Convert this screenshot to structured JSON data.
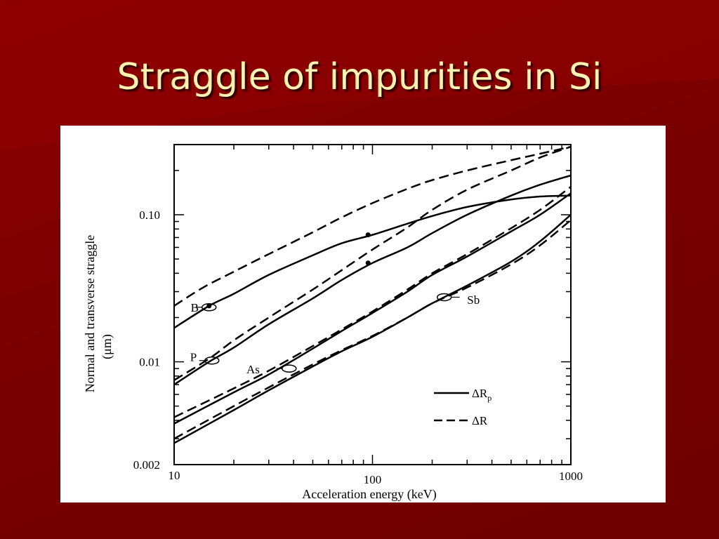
{
  "slide": {
    "title": "Straggle of impurities in Si"
  },
  "chart_data": {
    "type": "line",
    "title": "",
    "xlabel": "Acceleration energy (keV)",
    "ylabel": "Normal and transverse straggle",
    "ylabel_unit": "(μm)",
    "x_scale": "log",
    "y_scale": "log",
    "xlim": [
      10,
      1000
    ],
    "ylim": [
      0.002,
      0.3
    ],
    "x_ticks": [
      "10",
      "100",
      "1000"
    ],
    "y_ticks": [
      "0.002",
      "0.01",
      "0.10"
    ],
    "legend": [
      {
        "label": "ΔR",
        "sub": "p",
        "style": "solid"
      },
      {
        "label": "ΔR",
        "sub": "",
        "style": "dashed"
      }
    ],
    "series": [
      {
        "name": "B",
        "kind": "ΔRp",
        "points": [
          [
            10,
            0.017
          ],
          [
            15,
            0.024
          ],
          [
            20,
            0.029
          ],
          [
            30,
            0.039
          ],
          [
            50,
            0.053
          ],
          [
            70,
            0.064
          ],
          [
            100,
            0.073
          ],
          [
            150,
            0.087
          ],
          [
            200,
            0.098
          ],
          [
            300,
            0.113
          ],
          [
            500,
            0.127
          ],
          [
            700,
            0.133
          ],
          [
            1000,
            0.135
          ]
        ]
      },
      {
        "name": "B",
        "kind": "ΔR",
        "points": [
          [
            10,
            0.024
          ],
          [
            14,
            0.032
          ],
          [
            20,
            0.041
          ],
          [
            30,
            0.054
          ],
          [
            50,
            0.076
          ],
          [
            70,
            0.096
          ],
          [
            100,
            0.12
          ],
          [
            150,
            0.15
          ],
          [
            200,
            0.172
          ],
          [
            300,
            0.2
          ],
          [
            500,
            0.235
          ],
          [
            700,
            0.26
          ],
          [
            1000,
            0.29
          ]
        ]
      },
      {
        "name": "P",
        "kind": "ΔRp",
        "points": [
          [
            10,
            0.007
          ],
          [
            15,
            0.01
          ],
          [
            20,
            0.0125
          ],
          [
            30,
            0.018
          ],
          [
            50,
            0.027
          ],
          [
            70,
            0.036
          ],
          [
            100,
            0.047
          ],
          [
            150,
            0.06
          ],
          [
            200,
            0.075
          ],
          [
            300,
            0.1
          ],
          [
            500,
            0.135
          ],
          [
            700,
            0.16
          ],
          [
            1000,
            0.185
          ]
        ]
      },
      {
        "name": "P",
        "kind": "ΔR",
        "points": [
          [
            10,
            0.0075
          ],
          [
            15,
            0.0105
          ],
          [
            20,
            0.014
          ],
          [
            30,
            0.02
          ],
          [
            50,
            0.031
          ],
          [
            70,
            0.042
          ],
          [
            100,
            0.058
          ],
          [
            150,
            0.082
          ],
          [
            200,
            0.108
          ],
          [
            300,
            0.148
          ],
          [
            500,
            0.2
          ],
          [
            700,
            0.245
          ],
          [
            1000,
            0.29
          ]
        ]
      },
      {
        "name": "As",
        "kind": "ΔRp",
        "points": [
          [
            10,
            0.0038
          ],
          [
            20,
            0.0062
          ],
          [
            30,
            0.0082
          ],
          [
            50,
            0.0123
          ],
          [
            70,
            0.0162
          ],
          [
            100,
            0.0215
          ],
          [
            150,
            0.03
          ],
          [
            200,
            0.039
          ],
          [
            300,
            0.052
          ],
          [
            500,
            0.077
          ],
          [
            700,
            0.1
          ],
          [
            1000,
            0.14
          ]
        ]
      },
      {
        "name": "As",
        "kind": "ΔR",
        "points": [
          [
            10,
            0.0042
          ],
          [
            20,
            0.0066
          ],
          [
            30,
            0.0087
          ],
          [
            50,
            0.0128
          ],
          [
            70,
            0.0166
          ],
          [
            100,
            0.022
          ],
          [
            150,
            0.031
          ],
          [
            200,
            0.04
          ],
          [
            300,
            0.054
          ],
          [
            500,
            0.081
          ],
          [
            700,
            0.108
          ],
          [
            1000,
            0.155
          ]
        ]
      },
      {
        "name": "Sb",
        "kind": "ΔRp",
        "points": [
          [
            10,
            0.0028
          ],
          [
            20,
            0.0047
          ],
          [
            30,
            0.0064
          ],
          [
            50,
            0.0093
          ],
          [
            70,
            0.0118
          ],
          [
            100,
            0.0148
          ],
          [
            150,
            0.02
          ],
          [
            200,
            0.025
          ],
          [
            300,
            0.033
          ],
          [
            500,
            0.048
          ],
          [
            700,
            0.066
          ],
          [
            1000,
            0.1
          ]
        ]
      },
      {
        "name": "Sb",
        "kind": "ΔR",
        "points": [
          [
            10,
            0.003
          ],
          [
            20,
            0.005
          ],
          [
            30,
            0.0067
          ],
          [
            50,
            0.0096
          ],
          [
            70,
            0.012
          ],
          [
            100,
            0.015
          ],
          [
            150,
            0.02
          ],
          [
            200,
            0.025
          ],
          [
            300,
            0.032
          ],
          [
            500,
            0.046
          ],
          [
            700,
            0.062
          ],
          [
            1000,
            0.092
          ]
        ]
      }
    ],
    "labels": [
      {
        "text": "B",
        "x": 13.3,
        "y": 0.0235
      },
      {
        "text": "P",
        "x": 13.0,
        "y": 0.0108
      },
      {
        "text": "As",
        "x": 27.0,
        "y": 0.0089
      },
      {
        "text": "Sb",
        "x": 300.0,
        "y": 0.0265
      }
    ]
  }
}
